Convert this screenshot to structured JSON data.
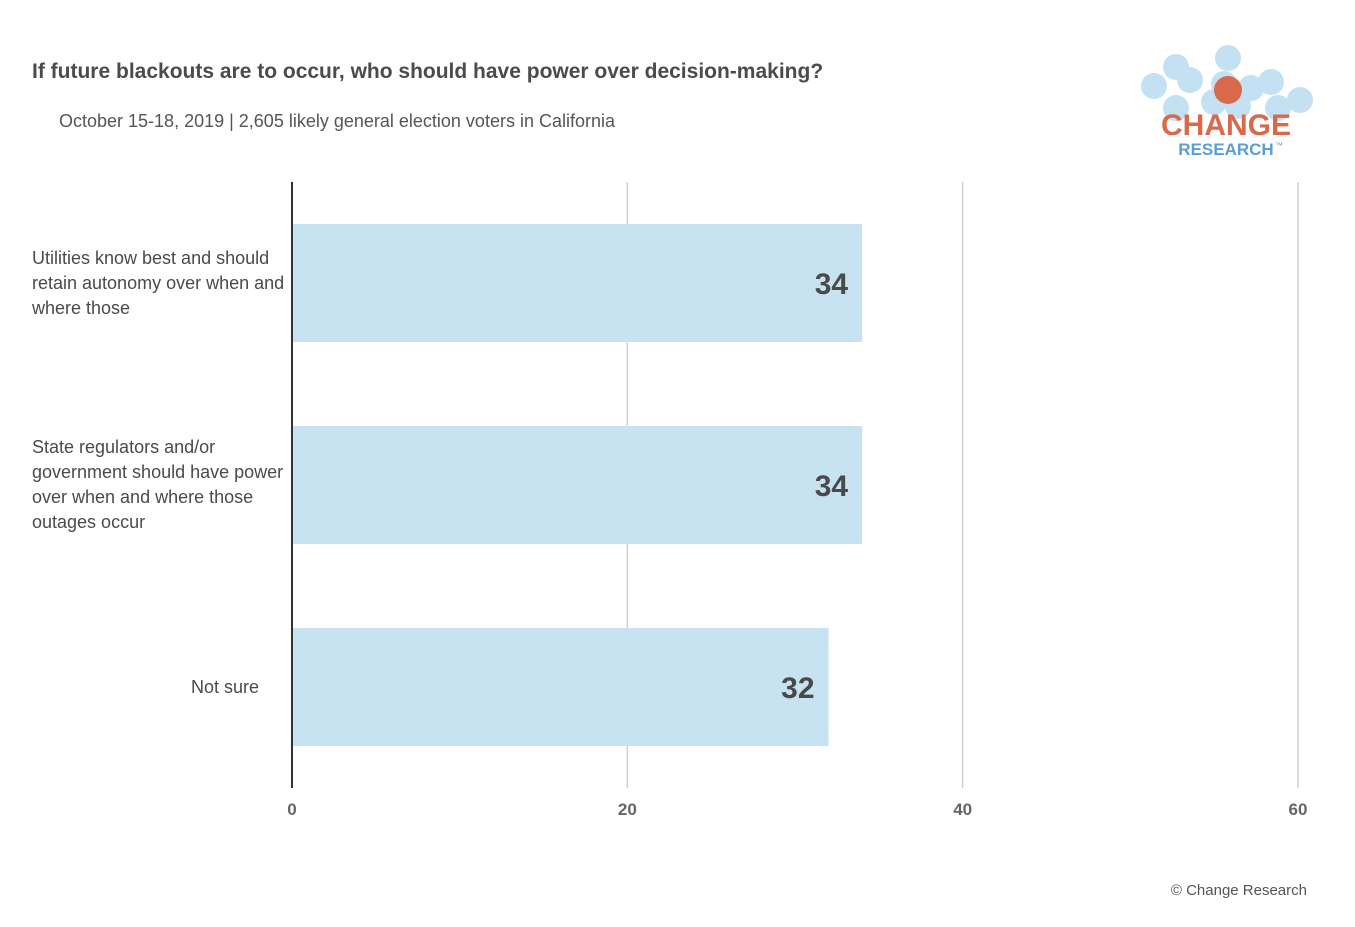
{
  "chart_data": {
    "type": "bar",
    "orientation": "horizontal",
    "title": "If future blackouts are to occur, who should have power over decision-making?",
    "subtitle": "October 15-18, 2019  | 2,605 likely general election voters in California",
    "categories": [
      "Utilities know best and should retain autonomy over when and where those",
      "State regulators and/or government should have power over when and where those outages occur",
      "Not sure"
    ],
    "values": [
      34,
      34,
      32
    ],
    "xlim": [
      0,
      60
    ],
    "xticks": [
      "0",
      "20",
      "40",
      "60"
    ],
    "grid": true,
    "bar_color": "#c7e2f1",
    "label_color": "#4a4a4a",
    "grid_color": "#d0d0d0",
    "axis_color": "#333333"
  },
  "logo": {
    "text_top": "CHANGE",
    "text_bottom": "RESEARCH",
    "trademark": "™",
    "top_color": "#d9694b",
    "bottom_color": "#5a9fd4",
    "bubble_color": "#b9dcf0",
    "dot_color": "#d9694b"
  },
  "footer": "© Change Research"
}
